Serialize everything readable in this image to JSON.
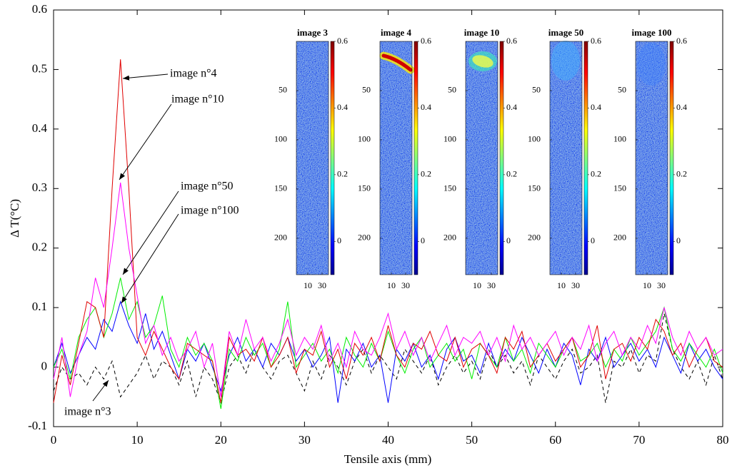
{
  "chart_data": {
    "type": "line",
    "xlabel": "Tensile axis (mm)",
    "ylabel": "Δ T(°C)",
    "xlim": [
      0,
      80
    ],
    "xticks": [
      0,
      10,
      20,
      30,
      40,
      50,
      60,
      70,
      80
    ],
    "ylim": [
      -0.1,
      0.6
    ],
    "yticks": [
      -0.1,
      0,
      0.1,
      0.2,
      0.3,
      0.4,
      0.5,
      0.6
    ],
    "x": [
      0,
      1,
      2,
      3,
      4,
      5,
      6,
      7,
      8,
      9,
      10,
      11,
      12,
      13,
      14,
      15,
      16,
      17,
      18,
      19,
      20,
      21,
      22,
      23,
      24,
      25,
      26,
      27,
      28,
      29,
      30,
      31,
      32,
      33,
      34,
      35,
      36,
      37,
      38,
      39,
      40,
      41,
      42,
      43,
      44,
      45,
      46,
      47,
      48,
      49,
      50,
      51,
      52,
      53,
      54,
      55,
      56,
      57,
      58,
      59,
      60,
      61,
      62,
      63,
      64,
      65,
      66,
      67,
      68,
      69,
      70,
      71,
      72,
      73,
      74,
      75,
      76,
      77,
      78,
      79,
      80
    ],
    "series": [
      {
        "name": "image n°3",
        "color": "#000000",
        "dashed": true,
        "values": [
          -0.04,
          0.0,
          -0.02,
          -0.01,
          -0.03,
          0.0,
          -0.02,
          0.01,
          -0.05,
          -0.03,
          -0.01,
          0.02,
          -0.02,
          0.01,
          0.0,
          -0.03,
          0.01,
          -0.05,
          0.0,
          -0.02,
          -0.06,
          0.0,
          0.02,
          -0.01,
          0.03,
          0.0,
          -0.02,
          0.01,
          0.02,
          -0.01,
          -0.04,
          0.01,
          -0.02,
          0.02,
          0.0,
          -0.03,
          0.01,
          0.03,
          -0.01,
          0.02,
          0.0,
          -0.02,
          0.03,
          0.01,
          -0.01,
          0.02,
          -0.03,
          0.0,
          0.02,
          -0.01,
          0.01,
          -0.02,
          0.03,
          0.0,
          0.02,
          -0.01,
          0.01,
          -0.03,
          0.02,
          0.0,
          -0.02,
          0.01,
          0.03,
          -0.01,
          0.0,
          0.02,
          -0.06,
          0.01,
          0.0,
          0.03,
          -0.01,
          0.02,
          0.01,
          0.09,
          0.03,
          0.0,
          -0.02,
          0.01,
          -0.03,
          0.02,
          -0.02
        ]
      },
      {
        "name": "image n°100",
        "color": "#0000ff",
        "dashed": false,
        "values": [
          0.0,
          0.04,
          -0.01,
          0.02,
          0.05,
          0.03,
          0.08,
          0.06,
          0.11,
          0.07,
          0.04,
          0.09,
          0.03,
          0.06,
          0.02,
          -0.02,
          0.03,
          0.01,
          0.04,
          0.0,
          -0.04,
          0.02,
          0.05,
          0.01,
          0.03,
          0.0,
          0.04,
          0.02,
          0.05,
          0.01,
          0.03,
          0.0,
          0.02,
          0.05,
          -0.06,
          0.03,
          0.01,
          0.04,
          0.0,
          0.02,
          -0.06,
          0.03,
          0.01,
          0.04,
          0.0,
          0.02,
          -0.02,
          0.03,
          0.05,
          0.01,
          0.02,
          -0.01,
          0.04,
          0.0,
          0.03,
          0.01,
          0.05,
          0.02,
          -0.01,
          0.03,
          0.0,
          0.04,
          0.02,
          -0.03,
          0.03,
          0.01,
          0.05,
          0.0,
          0.02,
          0.04,
          0.01,
          0.03,
          0.0,
          0.05,
          0.02,
          -0.01,
          0.04,
          0.01,
          0.03,
          0.0,
          -0.02
        ]
      },
      {
        "name": "image n°50",
        "color": "#00ee00",
        "dashed": false,
        "values": [
          0.0,
          0.03,
          -0.02,
          0.05,
          0.08,
          0.1,
          0.05,
          0.09,
          0.15,
          0.08,
          0.11,
          0.05,
          0.07,
          0.12,
          0.03,
          0.0,
          0.05,
          0.02,
          0.04,
          0.01,
          -0.07,
          0.03,
          0.01,
          0.05,
          0.02,
          0.04,
          0.0,
          0.03,
          0.11,
          0.0,
          0.02,
          0.04,
          0.01,
          0.03,
          -0.01,
          0.05,
          0.02,
          0.0,
          0.04,
          0.01,
          0.06,
          0.02,
          -0.01,
          0.03,
          0.05,
          0.0,
          0.02,
          0.04,
          0.01,
          0.03,
          -0.02,
          0.04,
          0.02,
          0.0,
          0.05,
          0.01,
          0.03,
          -0.01,
          0.04,
          0.02,
          0.0,
          0.03,
          0.05,
          0.01,
          0.02,
          0.04,
          0.0,
          0.03,
          0.01,
          0.05,
          0.02,
          0.04,
          0.06,
          0.1,
          0.03,
          0.01,
          0.04,
          0.02,
          0.0,
          0.03,
          -0.01
        ]
      },
      {
        "name": "image n°4",
        "color": "#e00000",
        "dashed": false,
        "values": [
          -0.06,
          0.02,
          -0.03,
          0.04,
          0.11,
          0.1,
          0.05,
          0.3,
          0.517,
          0.3,
          0.05,
          0.02,
          0.06,
          0.03,
          0.0,
          -0.02,
          0.04,
          0.03,
          0.02,
          0.01,
          -0.06,
          0.05,
          0.02,
          0.03,
          0.01,
          0.05,
          0.0,
          0.02,
          0.05,
          -0.01,
          0.03,
          0.02,
          0.06,
          0.0,
          0.03,
          -0.02,
          0.04,
          0.02,
          0.05,
          0.01,
          0.07,
          0.02,
          0.0,
          0.04,
          0.03,
          0.06,
          0.02,
          0.01,
          0.05,
          0.0,
          0.03,
          0.04,
          0.02,
          -0.01,
          0.05,
          0.03,
          0.06,
          0.0,
          0.02,
          0.04,
          0.01,
          0.03,
          0.05,
          0.0,
          0.02,
          0.07,
          -0.02,
          0.03,
          0.04,
          0.01,
          0.05,
          0.03,
          0.08,
          0.06,
          0.02,
          0.04,
          0.0,
          0.03,
          0.05,
          0.01,
          0.0
        ]
      },
      {
        "name": "image n°10",
        "color": "#ff00ff",
        "dashed": false,
        "values": [
          -0.02,
          0.05,
          -0.05,
          0.02,
          0.06,
          0.15,
          0.1,
          0.2,
          0.31,
          0.2,
          0.12,
          0.04,
          0.07,
          0.02,
          0.05,
          0.01,
          0.03,
          0.06,
          0.0,
          0.04,
          -0.05,
          0.06,
          0.02,
          0.08,
          0.03,
          0.05,
          0.01,
          0.04,
          0.08,
          0.02,
          0.05,
          0.03,
          0.07,
          0.01,
          0.04,
          0.0,
          0.06,
          0.03,
          0.02,
          0.05,
          0.09,
          0.03,
          0.06,
          0.02,
          0.05,
          0.01,
          0.04,
          0.07,
          0.02,
          0.05,
          0.04,
          0.06,
          0.02,
          0.05,
          0.01,
          0.07,
          0.03,
          0.05,
          0.02,
          0.04,
          0.06,
          0.02,
          0.05,
          0.03,
          0.07,
          0.01,
          0.04,
          0.06,
          0.02,
          0.05,
          0.03,
          0.07,
          0.04,
          0.1,
          0.05,
          0.02,
          0.06,
          0.03,
          0.05,
          0.02,
          0.03
        ]
      }
    ],
    "insets": {
      "titles": [
        "image 3",
        "image 4",
        "image 10",
        "image 50",
        "image 100"
      ],
      "xlim": [
        -6,
        39
      ],
      "xticks": [
        10,
        30
      ],
      "ylim": [
        0,
        237
      ],
      "yticks": [
        50,
        100,
        150,
        200
      ],
      "clim": [
        -0.1,
        0.6
      ],
      "cticks": [
        0,
        0.2,
        0.4,
        0.6
      ]
    }
  }
}
